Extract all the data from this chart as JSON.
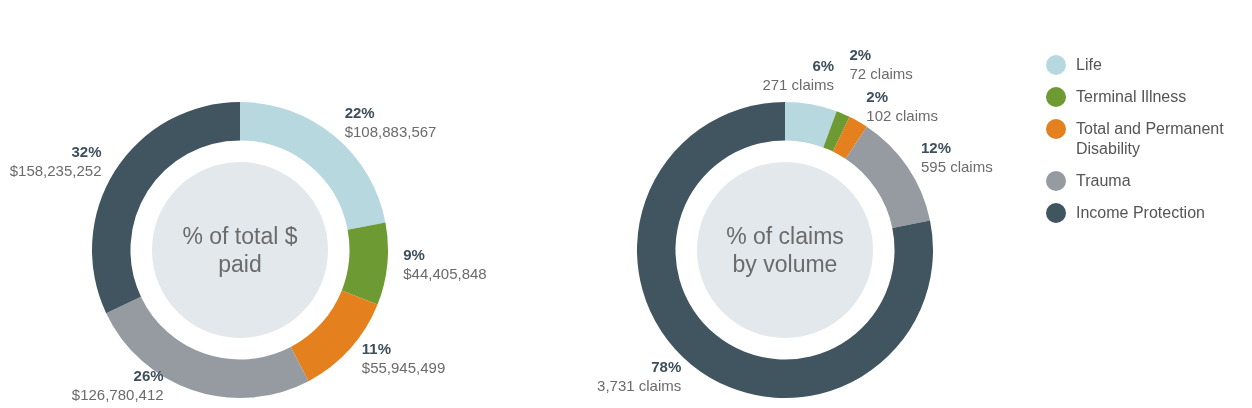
{
  "chart_data": [
    {
      "type": "donut",
      "title": "% of total $ paid",
      "categories": [
        null,
        null,
        null,
        null,
        null
      ],
      "values": [
        108883567,
        44405848,
        55945499,
        126780412,
        158235252
      ],
      "colors": [
        "#b8d8e0",
        "#6e9a34",
        "#e5801e",
        "#959ba1",
        "#415561"
      ],
      "value_labels": [
        "22%\n$108,883,567",
        "9%\n$44,405,848",
        "11%\n$55,945,499",
        "26%\n$126,780,412",
        "32%\n$158,235,252"
      ]
    },
    {
      "type": "donut",
      "title": "% of claims by volume",
      "categories": [
        "Life",
        "Terminal Illness",
        "Total and Permanent Disability",
        "Trauma",
        "Income Protection"
      ],
      "values": [
        271,
        72,
        102,
        595,
        3731
      ],
      "colors": [
        "#b8d8e0",
        "#6e9a34",
        "#e5801e",
        "#959ba1",
        "#415561"
      ],
      "value_labels": [
        "6%\n271 claims",
        "2%\n72 claims",
        "2%\n102 claims",
        "12%\n595 claims",
        "78%\n3,731 claims"
      ],
      "legend": "right"
    }
  ]
}
